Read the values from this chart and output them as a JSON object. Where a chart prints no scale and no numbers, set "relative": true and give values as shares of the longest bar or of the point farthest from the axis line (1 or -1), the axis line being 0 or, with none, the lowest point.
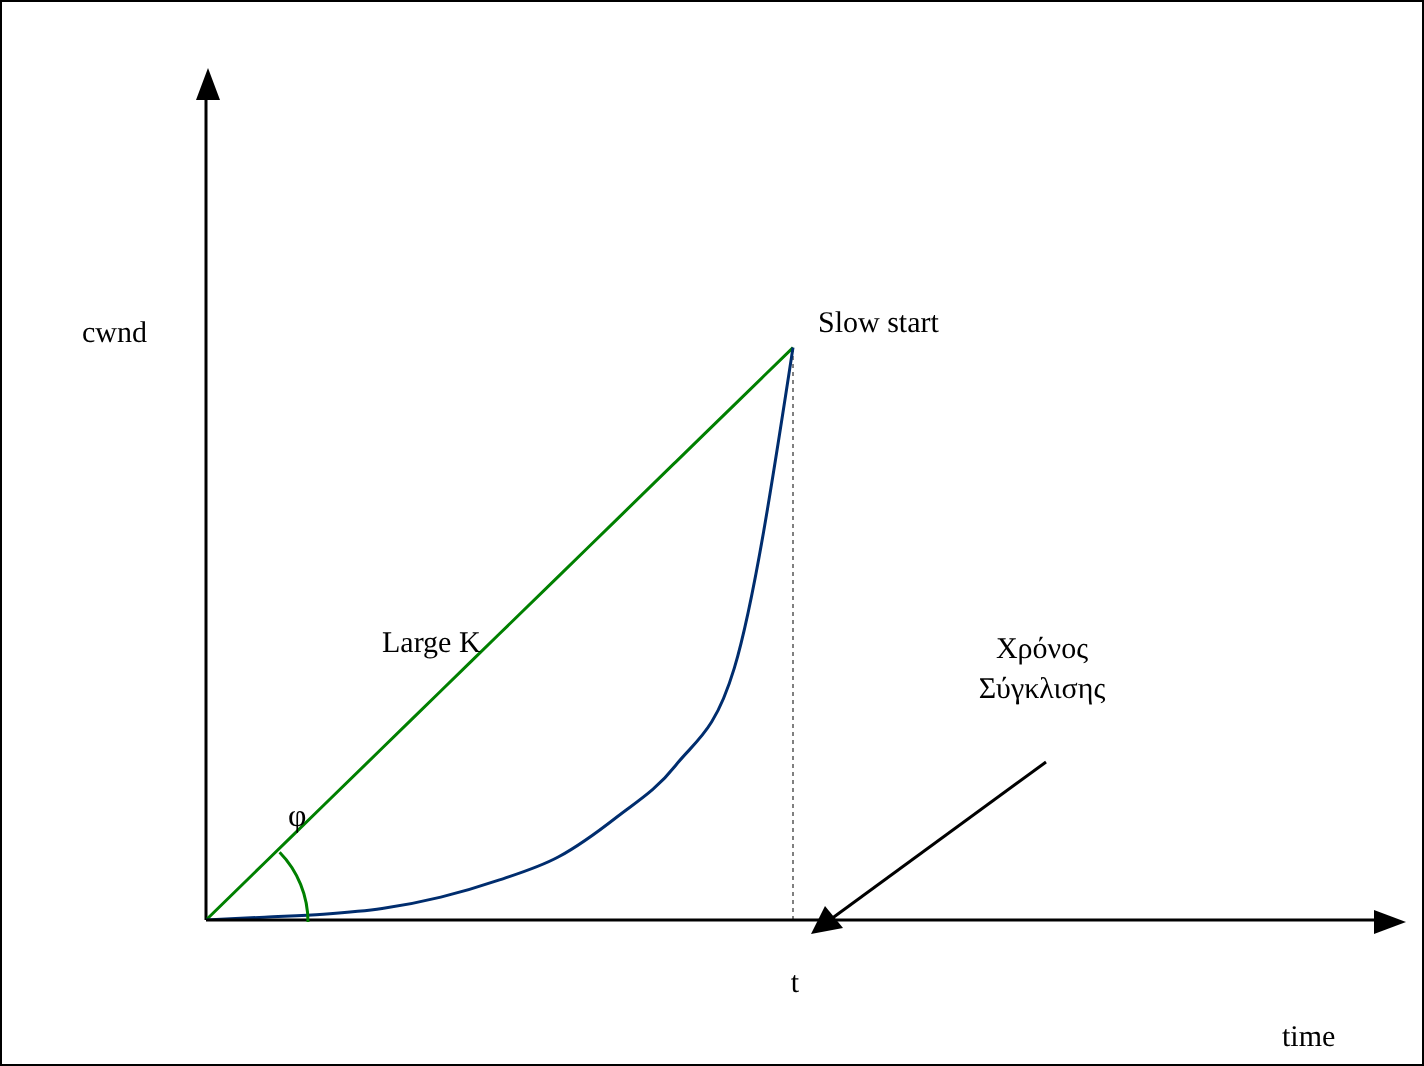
{
  "chart_data": {
    "type": "line",
    "relative": true,
    "xlabel": "time",
    "ylabel": "cwnd",
    "categories": [
      null,
      null,
      null,
      null,
      null,
      null,
      null,
      null,
      null,
      null,
      null,
      null,
      null,
      null,
      null,
      null,
      null,
      null,
      null,
      null,
      null
    ],
    "series": [
      {
        "name": "Large K",
        "color": "#008000",
        "values": [
          0,
          0.1,
          0.2,
          0.3,
          0.4,
          0.5,
          0.6,
          0.7,
          0.8,
          0.9,
          1,
          null,
          null,
          null,
          null,
          null,
          null,
          null,
          null,
          null,
          null
        ]
      },
      {
        "name": "Slow start",
        "color": "#002d6e",
        "values": [
          0,
          0.005,
          0.01,
          0.02,
          0.04,
          0.07,
          0.11,
          0.18,
          0.27,
          0.44,
          1,
          null,
          null,
          null,
          null,
          null,
          null,
          null,
          null,
          null,
          null
        ]
      }
    ],
    "ref_lines": [
      {
        "axis": "x",
        "label": "t",
        "color": "#808080",
        "line_style": "dotted"
      }
    ],
    "annotations": [
      "φ",
      "Χρόνος\nΣύγκλισης"
    ]
  }
}
